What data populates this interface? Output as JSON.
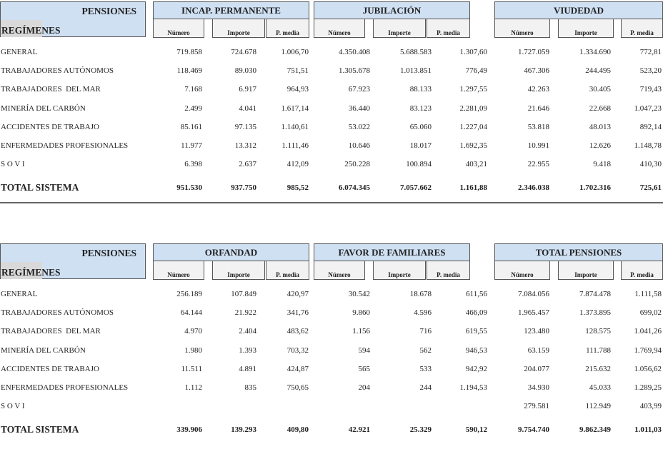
{
  "tables": [
    {
      "header": {
        "pensiones": "PENSIONES",
        "regimenes": "REGÍMENES",
        "groups": [
          {
            "title": "INCAP. PERMANENTE",
            "cols": [
              "Número",
              "Importe",
              "P. media"
            ]
          },
          {
            "title": "JUBILACIÓN",
            "cols": [
              "Número",
              "Importe",
              "P. media"
            ]
          },
          {
            "title": "VIUDEDAD",
            "cols": [
              "Número",
              "Importe",
              "P. media"
            ]
          }
        ]
      },
      "rows": [
        {
          "label": "GENERAL",
          "values": [
            "719.858",
            "724.678",
            "1.006,70",
            "4.350.408",
            "5.688.583",
            "1.307,60",
            "1.727.059",
            "1.334.690",
            "772,81"
          ]
        },
        {
          "label": "TRABAJADORES AUTÓNOMOS",
          "values": [
            "118.469",
            "89.030",
            "751,51",
            "1.305.678",
            "1.013.851",
            "776,49",
            "467.306",
            "244.495",
            "523,20"
          ]
        },
        {
          "label": "TRABAJADORES  DEL MAR",
          "values": [
            "7.168",
            "6.917",
            "964,93",
            "67.923",
            "88.133",
            "1.297,55",
            "42.263",
            "30.405",
            "719,43"
          ]
        },
        {
          "label": "MINERÍA DEL CARBÓN",
          "values": [
            "2.499",
            "4.041",
            "1.617,14",
            "36.440",
            "83.123",
            "2.281,09",
            "21.646",
            "22.668",
            "1.047,23"
          ]
        },
        {
          "label": "ACCIDENTES DE TRABAJO",
          "values": [
            "85.161",
            "97.135",
            "1.140,61",
            "53.022",
            "65.060",
            "1.227,04",
            "53.818",
            "48.013",
            "892,14"
          ]
        },
        {
          "label": "ENFERMEDADES PROFESIONALES",
          "values": [
            "11.977",
            "13.312",
            "1.111,46",
            "10.646",
            "18.017",
            "1.692,35",
            "10.991",
            "12.626",
            "1.148,78"
          ]
        },
        {
          "label": "S O V I",
          "values": [
            "6.398",
            "2.637",
            "412,09",
            "250.228",
            "100.894",
            "403,21",
            "22.955",
            "9.418",
            "410,30"
          ]
        }
      ],
      "total": {
        "label": "TOTAL SISTEMA",
        "values": [
          "951.530",
          "937.750",
          "985,52",
          "6.074.345",
          "7.057.662",
          "1.161,88",
          "2.346.038",
          "1.702.316",
          "725,61"
        ]
      }
    },
    {
      "header": {
        "pensiones": "PENSIONES",
        "regimenes": "REGÍMENES",
        "groups": [
          {
            "title": "ORFANDAD",
            "cols": [
              "Número",
              "Importe",
              "P. media"
            ]
          },
          {
            "title": "FAVOR DE FAMILIARES",
            "cols": [
              "Número",
              "Importe",
              "P. media"
            ]
          },
          {
            "title": "TOTAL PENSIONES",
            "cols": [
              "Número",
              "Importe",
              "P. media"
            ]
          }
        ]
      },
      "rows": [
        {
          "label": "GENERAL",
          "values": [
            "256.189",
            "107.849",
            "420,97",
            "30.542",
            "18.678",
            "611,56",
            "7.084.056",
            "7.874.478",
            "1.111,58"
          ]
        },
        {
          "label": "TRABAJADORES AUTÓNOMOS",
          "values": [
            "64.144",
            "21.922",
            "341,76",
            "9.860",
            "4.596",
            "466,09",
            "1.965.457",
            "1.373.895",
            "699,02"
          ]
        },
        {
          "label": "TRABAJADORES  DEL MAR",
          "values": [
            "4.970",
            "2.404",
            "483,62",
            "1.156",
            "716",
            "619,55",
            "123.480",
            "128.575",
            "1.041,26"
          ]
        },
        {
          "label": "MINERÍA DEL CARBÓN",
          "values": [
            "1.980",
            "1.393",
            "703,32",
            "594",
            "562",
            "946,53",
            "63.159",
            "111.788",
            "1.769,94"
          ]
        },
        {
          "label": "ACCIDENTES DE TRABAJO",
          "values": [
            "11.511",
            "4.891",
            "424,87",
            "565",
            "533",
            "942,92",
            "204.077",
            "215.632",
            "1.056,62"
          ]
        },
        {
          "label": "ENFERMEDADES PROFESIONALES",
          "values": [
            "1.112",
            "835",
            "750,65",
            "204",
            "244",
            "1.194,53",
            "34.930",
            "45.033",
            "1.289,25"
          ]
        },
        {
          "label": "S O V I",
          "values": [
            "",
            "",
            "",
            "",
            "",
            "",
            "279.581",
            "112.949",
            "403,99"
          ]
        }
      ],
      "total": {
        "label": "TOTAL SISTEMA",
        "values": [
          "339.906",
          "139.293",
          "409,80",
          "42.921",
          "25.329",
          "590,12",
          "9.754.740",
          "9.862.349",
          "1.011,03"
        ]
      }
    }
  ]
}
